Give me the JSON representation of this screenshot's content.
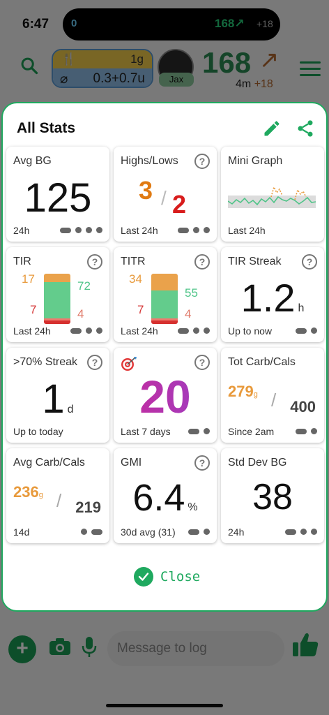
{
  "status_bar": {
    "time": "6:47"
  },
  "island": {
    "left_value": "0",
    "bg": "168↗",
    "delta": "+18"
  },
  "background": {
    "carb_top_left": "🍴",
    "carb_top_right": "1g",
    "carb_bottom_left": "⌀",
    "carb_bottom_right": "0.3+0.7u",
    "avatar_name": "Jax",
    "bg_value": "168",
    "bg_arrow": "↗",
    "bg_sub_time": "4m",
    "bg_sub_delta": "+18",
    "message_placeholder": "Message to log"
  },
  "modal": {
    "title": "All Stats",
    "close_label": "Close",
    "accent": "#1fa95f",
    "cards": {
      "avg_bg": {
        "label": "Avg BG",
        "value": "125",
        "footer": "24h"
      },
      "highs_lows": {
        "label": "Highs/Lows",
        "high": "3",
        "slash": "/",
        "low": "2",
        "footer": "Last 24h"
      },
      "mini_graph": {
        "label": "Mini Graph",
        "footer": "Last 24h"
      },
      "tir": {
        "label": "TIR",
        "high": "17",
        "in_range": "72",
        "low": "7",
        "very_low": "4",
        "footer": "Last 24h"
      },
      "titr": {
        "label": "TITR",
        "high": "34",
        "in_range": "55",
        "low": "7",
        "very_low": "4",
        "footer": "Last 24h"
      },
      "tir_streak": {
        "label": "TIR Streak",
        "value": "1.2",
        "unit": "h",
        "footer": "Up to now"
      },
      "over70_streak": {
        "label": ">70% Streak",
        "value": "1",
        "unit": "d",
        "footer": "Up to today"
      },
      "goal": {
        "value": "20",
        "footer": "Last 7 days"
      },
      "tot_carb_cals": {
        "label": "Tot Carb/Cals",
        "carbs": "279",
        "carb_unit": "g",
        "slash": "/",
        "cals": "400",
        "footer": "Since 2am"
      },
      "avg_carb_cals": {
        "label": "Avg Carb/Cals",
        "carbs": "236",
        "carb_unit": "g",
        "slash": "/",
        "cals": "219",
        "footer": "14d"
      },
      "gmi": {
        "label": "GMI",
        "value": "6.4",
        "unit": "%",
        "footer": "30d avg (31)"
      },
      "std_dev": {
        "label": "Std Dev BG",
        "value": "38",
        "footer": "24h"
      }
    }
  }
}
